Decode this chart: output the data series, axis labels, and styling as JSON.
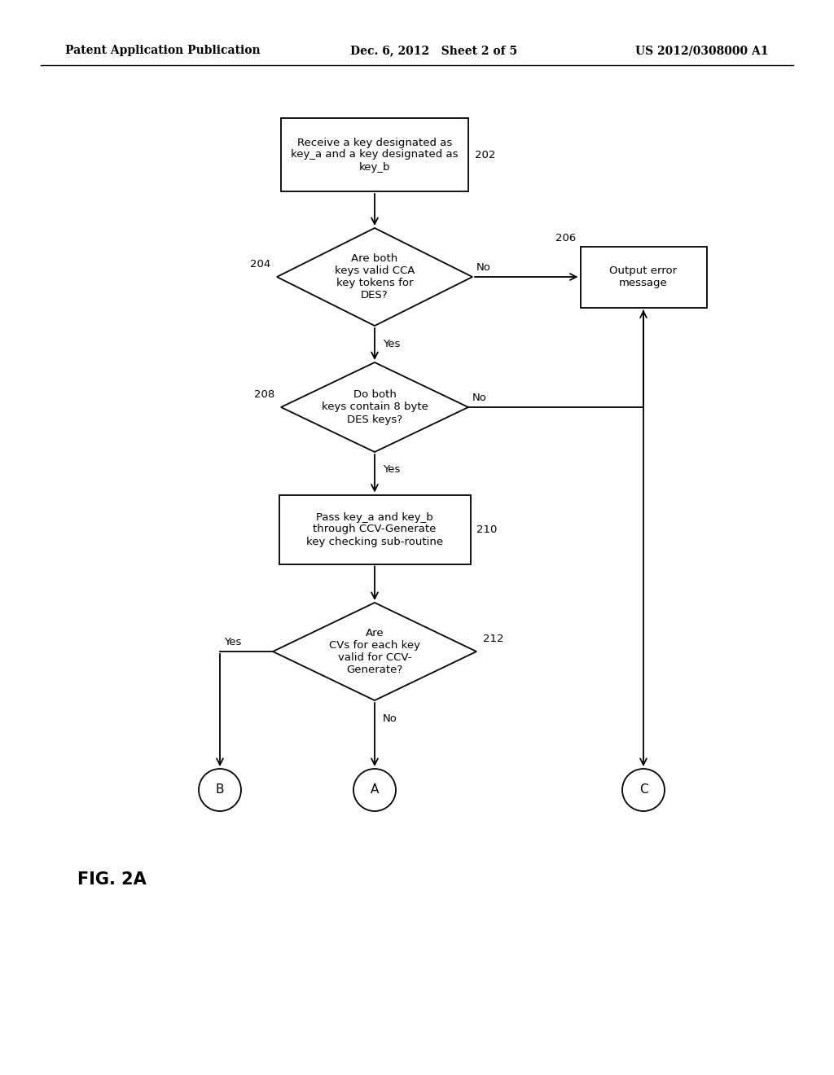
{
  "bg_color": "#ffffff",
  "text_color": "#000000",
  "header_left": "Patent Application Publication",
  "header_center": "Dec. 6, 2012   Sheet 2 of 5",
  "header_right": "US 2012/0308000 A1",
  "figure_label": "FIG. 2A",
  "box202_text": "Receive a key designated as\nkey_a and a key designated as\nkey_b",
  "box202_label": "202",
  "d204_text": "Are both\nkeys valid CCA\nkey tokens for\nDES?",
  "d204_label": "204",
  "d208_text": "Do both\nkeys contain 8 byte\nDES keys?",
  "d208_label": "208",
  "box210_text": "Pass key_a and key_b\nthrough CCV-Generate\nkey checking sub-routine",
  "box210_label": "210",
  "d212_text": "Are\nCVs for each key\nvalid for CCV-\nGenerate?",
  "d212_label": "212",
  "box206_text": "Output error\nmessage",
  "box206_label": "206",
  "circB_text": "B",
  "circA_text": "A",
  "circC_text": "C",
  "yes_label": "Yes",
  "no_label": "No"
}
